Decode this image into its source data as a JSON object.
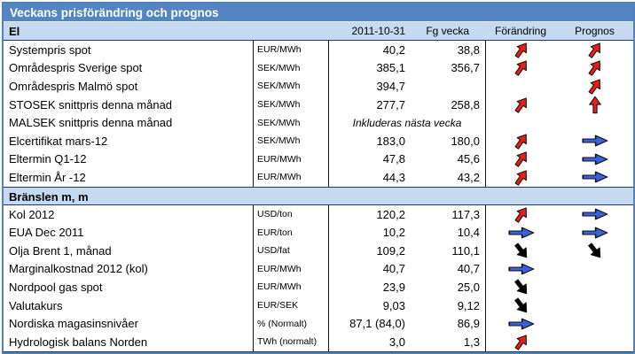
{
  "title": "Veckans prisförändring och prognos",
  "columns": {
    "date": "2011-10-31",
    "prev_week": "Fg vecka",
    "change": "Förändring",
    "forecast": "Prognos"
  },
  "colors": {
    "title_bg": "#5484c1",
    "section_bg": "#c5d9f1",
    "outer_border": "#4f81bd",
    "arrow_red": "#ee1c16",
    "arrow_blue": "#3c5fdd",
    "arrow_black": "#000000"
  },
  "sections": [
    {
      "name": "El",
      "rows": [
        {
          "label": "Systempris spot",
          "unit": "EUR/MWh",
          "value": "40,2",
          "prev": "38,8",
          "change": "up-right-red",
          "forecast": "up-right-red"
        },
        {
          "label": "Områdespris Sverige spot",
          "unit": "SEK/MWh",
          "value": "385,1",
          "prev": "356,7",
          "change": "up-right-red",
          "forecast": "up-right-red"
        },
        {
          "label": "Områdespris Malmö spot",
          "unit": "SEK/MWh",
          "value": "394,7",
          "prev": "",
          "change": "",
          "forecast": "up-right-red"
        },
        {
          "label": "STOSEK snittpris denna  månad",
          "unit": "SEK/MWh",
          "value": "277,7",
          "prev": "258,8",
          "change": "up-right-red",
          "forecast": "up-red"
        },
        {
          "label": "MALSEK snittpris denna månad",
          "unit": "SEK/MWh",
          "note": "Inkluderas nästa vecka",
          "change": "",
          "forecast": ""
        },
        {
          "label": "Elcertifikat mars-12",
          "unit": "SEK/MWh",
          "value": "183,0",
          "prev": "180,0",
          "change": "up-right-red",
          "forecast": "right-blue"
        },
        {
          "label": "Eltermin Q1-12",
          "unit": "EUR/MWh",
          "value": "47,8",
          "prev": "45,6",
          "change": "up-right-red",
          "forecast": "right-blue"
        },
        {
          "label": "Eltermin År -12",
          "unit": "EUR/MWh",
          "value": "44,3",
          "prev": "43,2",
          "change": "up-right-red",
          "forecast": "right-blue"
        }
      ]
    },
    {
      "name": "Bränslen m, m",
      "rows": [
        {
          "label": "Kol 2012",
          "unit": "USD/ton",
          "value": "120,2",
          "prev": "117,3",
          "change": "up-right-red",
          "forecast": "right-blue"
        },
        {
          "label": "EUA Dec 2011",
          "unit": "EUR/ton",
          "value": "10,2",
          "prev": "10,4",
          "change": "right-blue",
          "forecast": "right-blue"
        },
        {
          "label": "Olja Brent 1, månad",
          "unit": "USD/fat",
          "value": "109,2",
          "prev": "110,1",
          "change": "down-right-black",
          "forecast": "down-right-black"
        },
        {
          "label": "Marginalkostnad 2012 (kol)",
          "unit": "EUR/MWh",
          "value": "40,7",
          "prev": "40,7",
          "change": "right-blue",
          "forecast": ""
        },
        {
          "label": "Nordpool gas spot",
          "unit": "EUR/MWh",
          "value": "23,9",
          "prev": "25,0",
          "change": "down-right-black",
          "forecast": ""
        },
        {
          "label": "Valutakurs",
          "unit": "EUR/SEK",
          "value": "9,03",
          "prev": "9,12",
          "change": "down-right-black",
          "forecast": ""
        },
        {
          "label": "Nordiska magasinsnivåer",
          "unit": "% (Normalt)",
          "value": "87,1 (84,0)",
          "prev": "86,9",
          "change": "right-blue",
          "forecast": ""
        },
        {
          "label": "Hydrologisk balans Norden",
          "unit": "TWh (normalt)",
          "value": "3,0",
          "prev": "1,3",
          "change": "up-right-red",
          "forecast": ""
        }
      ]
    }
  ]
}
